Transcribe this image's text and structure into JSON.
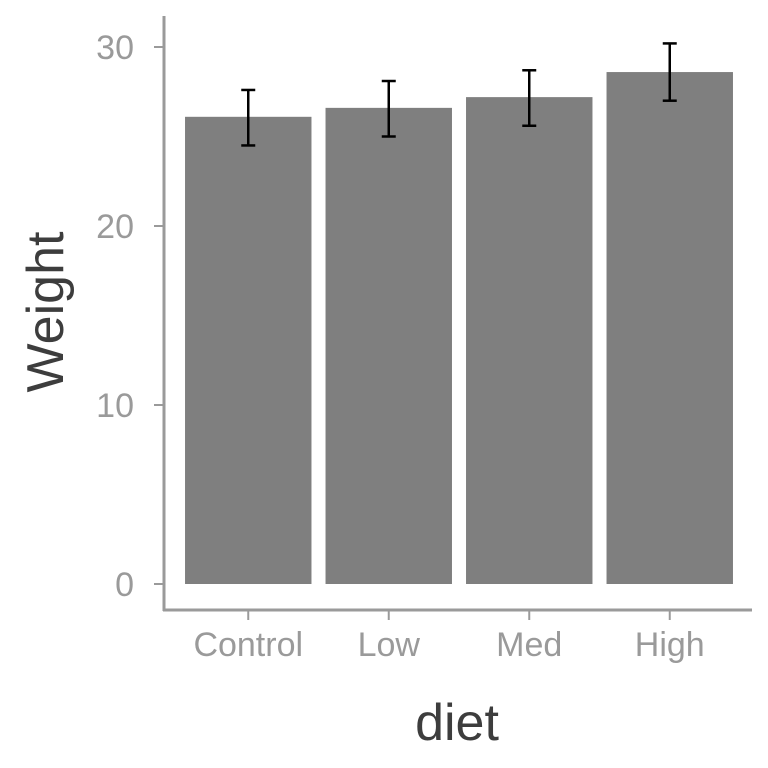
{
  "chart_data": {
    "type": "bar",
    "title": "",
    "xlabel": "diet",
    "ylabel": "Weight",
    "categories": [
      "Control",
      "Low",
      "Med",
      "High"
    ],
    "values": [
      26.1,
      26.6,
      27.2,
      28.6
    ],
    "error_low": [
      24.5,
      25.0,
      25.6,
      27.0
    ],
    "error_high": [
      27.6,
      28.1,
      28.7,
      30.2
    ],
    "ylim": [
      0,
      30.5
    ],
    "yticks": [
      0,
      10,
      20,
      30
    ],
    "ytick_labels": [
      "0",
      "10",
      "20",
      "30"
    ],
    "grid": false,
    "legend": "none",
    "colors": {
      "bar": "#7f7f7f",
      "errorbar": "#000000",
      "axis_line": "#9a9a9a",
      "tick_label": "#9a9a9a",
      "axis_title": "#3d3d3d",
      "background": "#ffffff"
    }
  }
}
